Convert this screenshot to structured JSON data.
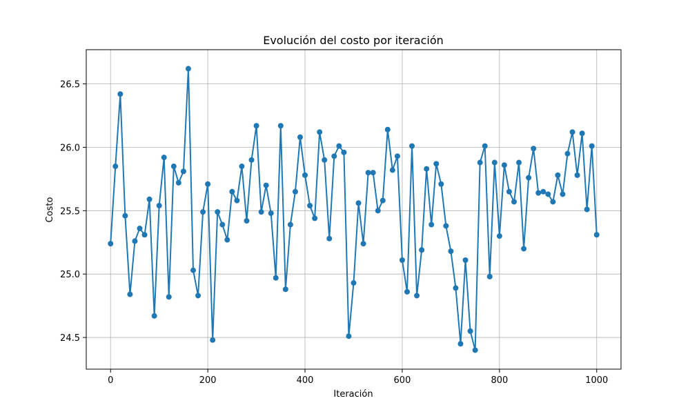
{
  "chart_data": {
    "type": "line",
    "title": "Evolución del costo por iteración",
    "xlabel": "Iteración",
    "ylabel": "Costo",
    "xlim": [
      -50,
      1050
    ],
    "ylim": [
      24.25,
      26.77
    ],
    "xticks": [
      0,
      200,
      400,
      600,
      800,
      1000
    ],
    "yticks": [
      24.5,
      25.0,
      25.5,
      26.0,
      26.5
    ],
    "ytick_labels": [
      "24.5",
      "25.0",
      "25.5",
      "26.0",
      "26.5"
    ],
    "grid": true,
    "legend": "none",
    "color": "#1f77b4",
    "marker": "circle",
    "series": [
      {
        "x_start": 0,
        "x_step": 10,
        "y": [
          25.24,
          25.85,
          26.42,
          25.46,
          24.84,
          25.26,
          25.36,
          25.31,
          25.59,
          24.67,
          25.54,
          25.92,
          24.82,
          25.85,
          25.72,
          25.81,
          26.62,
          25.03,
          24.83,
          25.49,
          25.71,
          24.48,
          25.49,
          25.39,
          25.27,
          25.65,
          25.58,
          25.85,
          25.42,
          25.9,
          26.17,
          25.49,
          25.7,
          25.48,
          24.97,
          26.17,
          24.88,
          25.39,
          25.65,
          26.08,
          25.78,
          25.54,
          25.44,
          26.12,
          25.9,
          25.28,
          25.93,
          26.01,
          25.96,
          24.51,
          24.93,
          25.56,
          25.24,
          25.8,
          25.8,
          25.5,
          25.58,
          26.14,
          25.82,
          25.93,
          25.11,
          24.86,
          26.01,
          24.83,
          25.19,
          25.83,
          25.39,
          25.87,
          25.71,
          25.38,
          25.18,
          24.89,
          24.45,
          25.11,
          24.55,
          24.4,
          25.88,
          26.01,
          24.98,
          25.88,
          25.3,
          25.86,
          25.65,
          25.57,
          25.88,
          25.2,
          25.76,
          25.99,
          25.64,
          25.65,
          25.63,
          25.57,
          25.78,
          25.63,
          25.95,
          26.12,
          25.78,
          26.11,
          25.51,
          26.01,
          25.31
        ],
        "name": ""
      }
    ]
  }
}
